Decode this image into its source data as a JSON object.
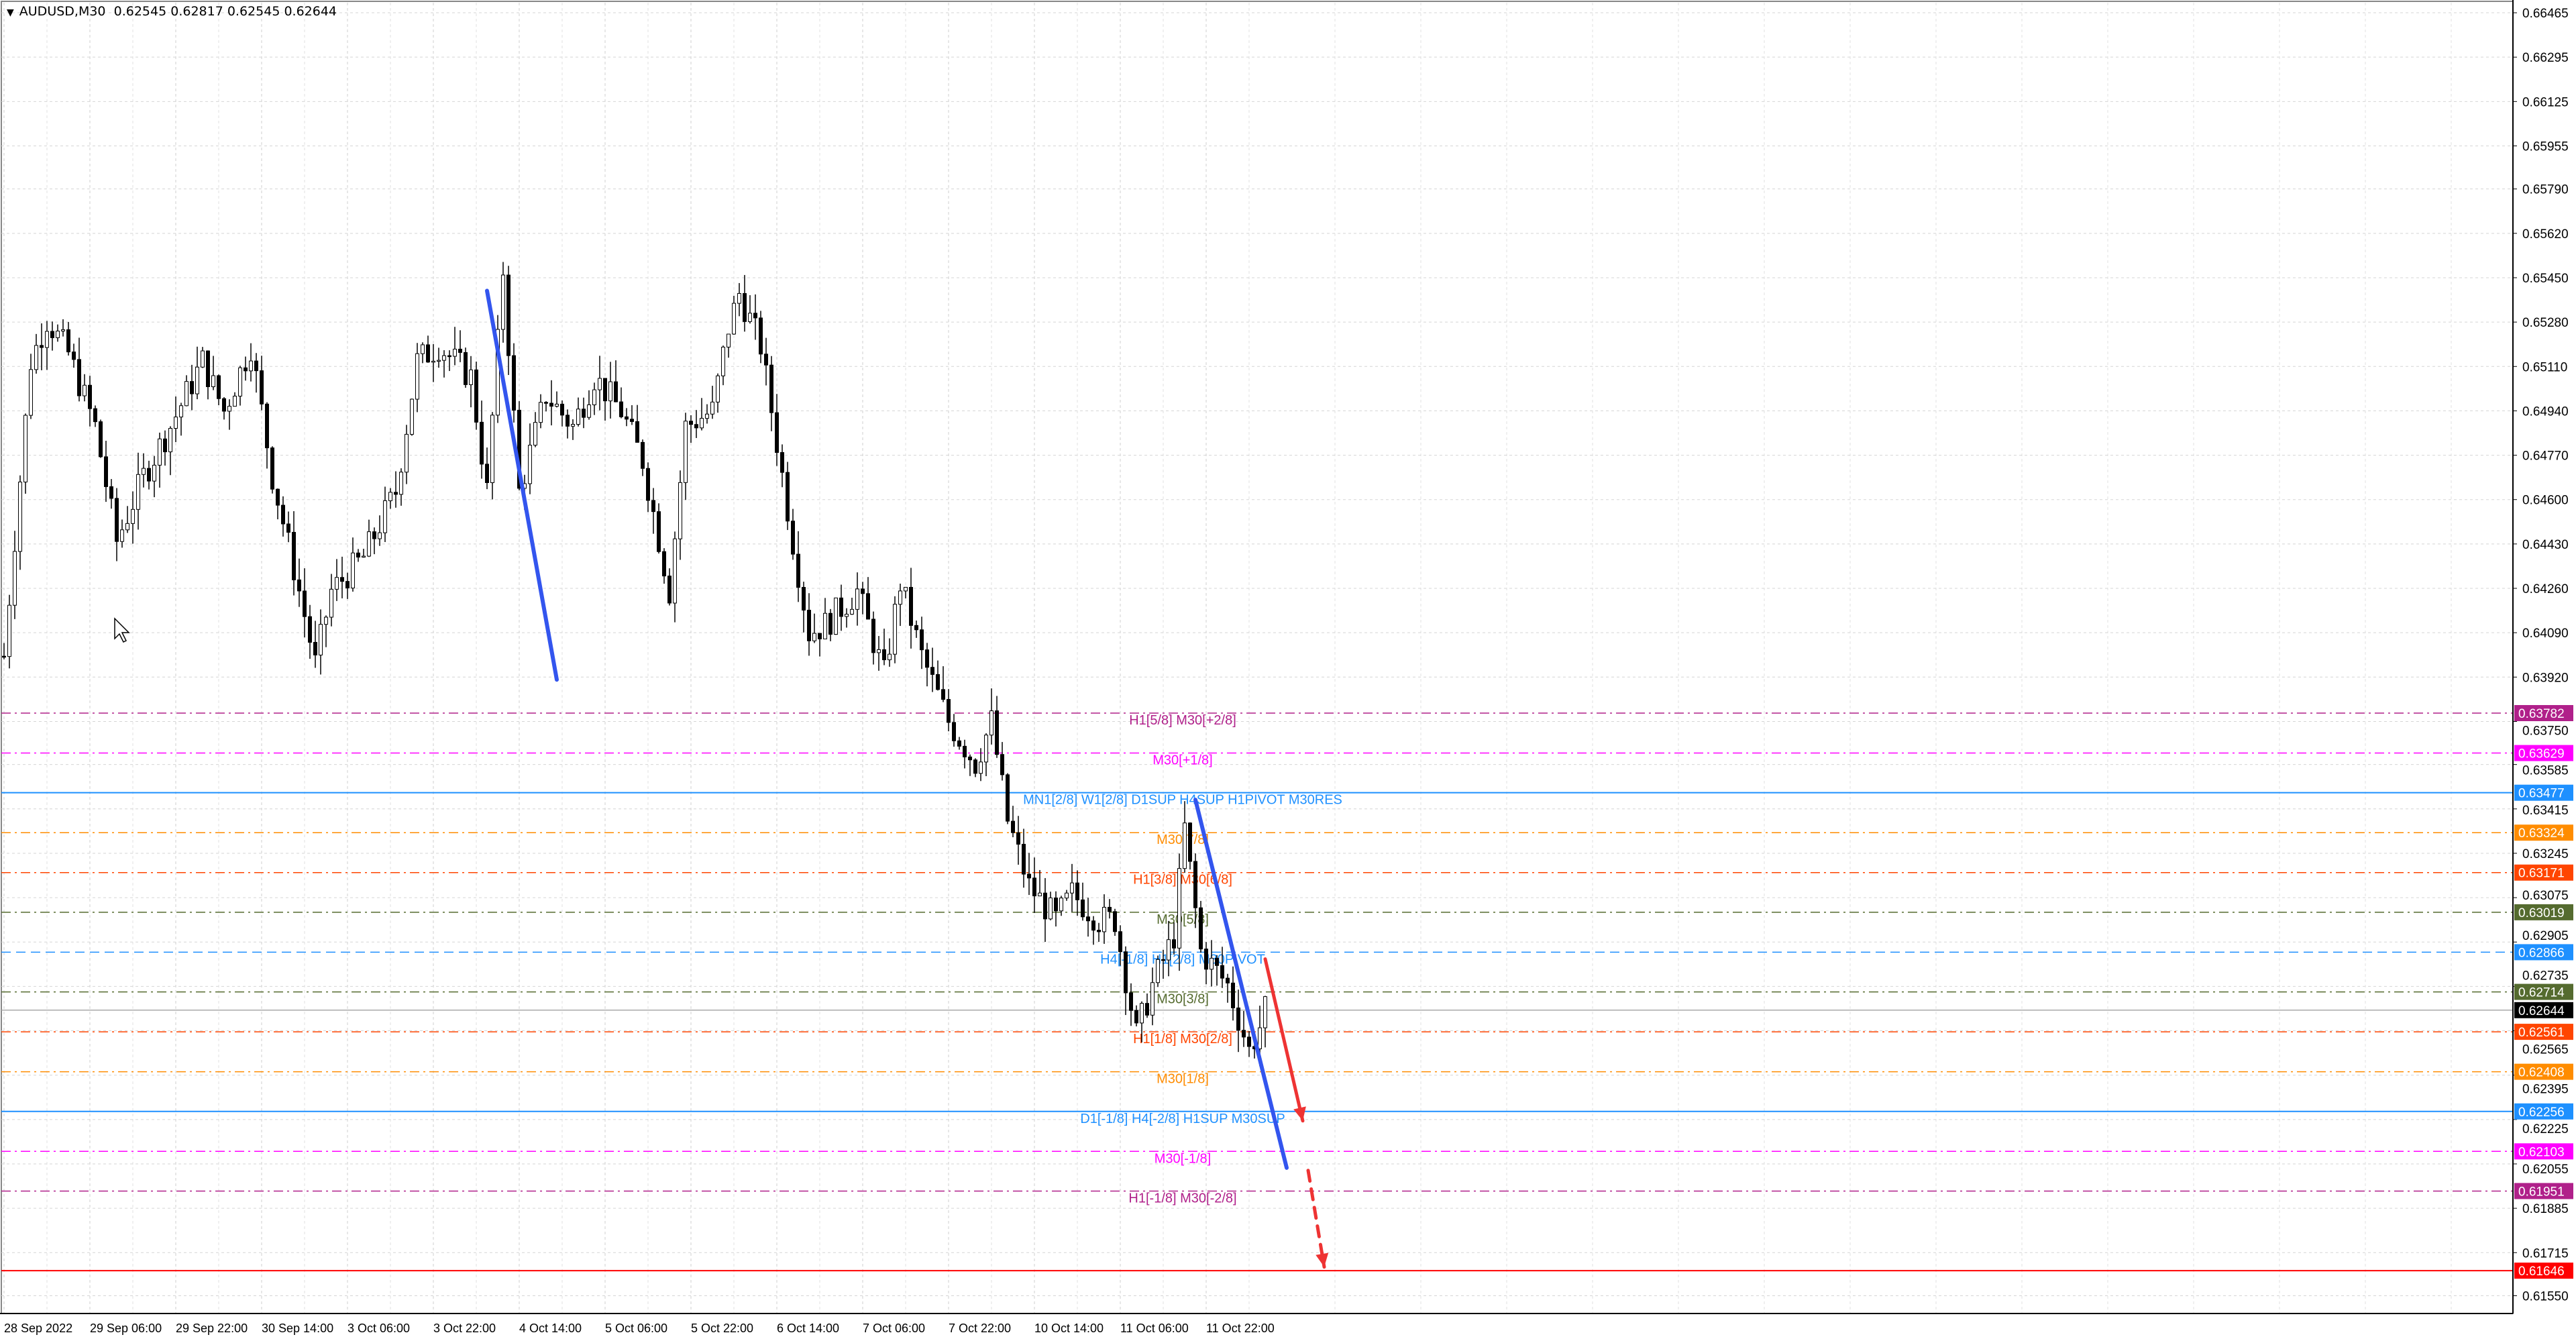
{
  "header": {
    "symbol": "AUDUSD,M30",
    "ohlc": "0.62545 0.62817 0.62545 0.62644",
    "menu_icon": "triangle-down-icon"
  },
  "chart_data": {
    "type": "candlestick",
    "symbol": "AUDUSD",
    "timeframe": "M30",
    "ylim": [
      0.6148,
      0.665
    ],
    "grid": true,
    "current_price": 0.62644,
    "y_ticks": [
      "0.66465",
      "0.66295",
      "0.66125",
      "0.65955",
      "0.65790",
      "0.65620",
      "0.65450",
      "0.65280",
      "0.65110",
      "0.64940",
      "0.64770",
      "0.64600",
      "0.64430",
      "0.64260",
      "0.64090",
      "0.63920",
      "0.63750",
      "0.63585",
      "0.63415",
      "0.63245",
      "0.63075",
      "0.62905",
      "0.62735",
      "0.62565",
      "0.62395",
      "0.62225",
      "0.62055",
      "0.61885",
      "0.61715",
      "0.61550"
    ],
    "x_ticks": [
      "28 Sep 2022",
      "29 Sep 06:00",
      "29 Sep 22:00",
      "30 Sep 14:00",
      "3 Oct 06:00",
      "3 Oct 22:00",
      "4 Oct 14:00",
      "5 Oct 06:00",
      "5 Oct 22:00",
      "6 Oct 14:00",
      "7 Oct 06:00",
      "7 Oct 22:00",
      "10 Oct 14:00",
      "11 Oct 06:00",
      "11 Oct 22:00"
    ],
    "close_path": [
      [
        0,
        0.64
      ],
      [
        5,
        0.6513
      ],
      [
        8,
        0.6529
      ],
      [
        12,
        0.6516
      ],
      [
        17,
        0.6488
      ],
      [
        21,
        0.6444
      ],
      [
        26,
        0.6469
      ],
      [
        31,
        0.6488
      ],
      [
        37,
        0.6513
      ],
      [
        41,
        0.6494
      ],
      [
        46,
        0.6519
      ],
      [
        50,
        0.6469
      ],
      [
        55,
        0.6425
      ],
      [
        58,
        0.6397
      ],
      [
        61,
        0.6425
      ],
      [
        67,
        0.6438
      ],
      [
        73,
        0.6463
      ],
      [
        77,
        0.6513
      ],
      [
        81,
        0.6519
      ],
      [
        87,
        0.6507
      ],
      [
        90,
        0.6463
      ],
      [
        93,
        0.6548
      ],
      [
        96,
        0.6463
      ],
      [
        101,
        0.65
      ],
      [
        106,
        0.6488
      ],
      [
        110,
        0.6507
      ],
      [
        115,
        0.6494
      ],
      [
        119,
        0.6475
      ],
      [
        124,
        0.6425
      ],
      [
        127,
        0.6488
      ],
      [
        132,
        0.6494
      ],
      [
        135,
        0.6526
      ],
      [
        137,
        0.6539
      ],
      [
        141,
        0.6519
      ],
      [
        144,
        0.6482
      ],
      [
        147,
        0.6444
      ],
      [
        150,
        0.6409
      ],
      [
        153,
        0.6412
      ],
      [
        159,
        0.6425
      ],
      [
        164,
        0.6393
      ],
      [
        167,
        0.6428
      ],
      [
        171,
        0.64
      ],
      [
        176,
        0.6375
      ],
      [
        181,
        0.6359
      ],
      [
        184,
        0.6375
      ],
      [
        187,
        0.6337
      ],
      [
        191,
        0.6312
      ],
      [
        196,
        0.6299
      ],
      [
        199,
        0.6309
      ],
      [
        204,
        0.6299
      ],
      [
        207,
        0.6299
      ],
      [
        211,
        0.6255
      ],
      [
        214,
        0.6274
      ],
      [
        218,
        0.6293
      ],
      [
        220,
        0.6334
      ],
      [
        223,
        0.6287
      ],
      [
        228,
        0.6274
      ],
      [
        232,
        0.6249
      ],
      [
        234,
        0.6258
      ],
      [
        235,
        0.62644
      ]
    ],
    "levels": [
      {
        "price": 0.63782,
        "label": "H1[5/8] M30[+2/8]",
        "color": "#b0208a",
        "style": "dashdot"
      },
      {
        "price": 0.63629,
        "label": "M30[+1/8]",
        "color": "#ff00ff",
        "style": "dashdot"
      },
      {
        "price": 0.63477,
        "label": "MN1[2/8] W1[2/8] D1SUP H4SUP H1PIVOT M30RES",
        "color": "#1e90ff",
        "style": "solid"
      },
      {
        "price": 0.63324,
        "label": "M30[7/8]",
        "color": "#ff8c00",
        "style": "dashdot"
      },
      {
        "price": 0.63171,
        "label": "H1[3/8] M30[6/8]",
        "color": "#ff4500",
        "style": "dashdot"
      },
      {
        "price": 0.63019,
        "label": "M30[5/8]",
        "color": "#556b2f",
        "style": "dashdot"
      },
      {
        "price": 0.62866,
        "label": "H4[-1/8] H1[2/8] M30PIVOT",
        "color": "#1e90ff",
        "style": "dash"
      },
      {
        "price": 0.62714,
        "label": "M30[3/8]",
        "color": "#556b2f",
        "style": "dashdot"
      },
      {
        "price": 0.62561,
        "label": "H1[1/8] M30[2/8]",
        "color": "#ff4500",
        "style": "dashdot"
      },
      {
        "price": 0.62408,
        "label": "M30[1/8]",
        "color": "#ff8c00",
        "style": "dashdot"
      },
      {
        "price": 0.62256,
        "label": "D1[-1/8] H4[-2/8] H1SUP M30SUP",
        "color": "#1e90ff",
        "style": "solid"
      },
      {
        "price": 0.62103,
        "label": "M30[-1/8]",
        "color": "#ff00ff",
        "style": "dashdot"
      },
      {
        "price": 0.61951,
        "label": "H1[-1/8] M30[-2/8]",
        "color": "#b0208a",
        "style": "dashdot"
      },
      {
        "price": 0.61646,
        "label": "",
        "color": "#ff0000",
        "style": "solid"
      }
    ],
    "price_tags": [
      {
        "text": "0.63782",
        "price": 0.63782,
        "color": "#b0208a"
      },
      {
        "text": "0.63629",
        "price": 0.63629,
        "color": "#ff00ff"
      },
      {
        "text": "0.63477",
        "price": 0.63477,
        "color": "#1e90ff"
      },
      {
        "text": "0.63324",
        "price": 0.63324,
        "color": "#ff8c00"
      },
      {
        "text": "0.63171",
        "price": 0.63171,
        "color": "#ff4500"
      },
      {
        "text": "0.63019",
        "price": 0.63019,
        "color": "#556b2f"
      },
      {
        "text": "0.62866",
        "price": 0.62866,
        "color": "#1e90ff"
      },
      {
        "text": "0.62714",
        "price": 0.62714,
        "color": "#556b2f"
      },
      {
        "text": "0.62644",
        "price": 0.62644,
        "color": "#000000"
      },
      {
        "text": "0.62561",
        "price": 0.62561,
        "color": "#ff4500"
      },
      {
        "text": "0.62408",
        "price": 0.62408,
        "color": "#ff8c00"
      },
      {
        "text": "0.62256",
        "price": 0.62256,
        "color": "#1e90ff"
      },
      {
        "text": "0.62103",
        "price": 0.62103,
        "color": "#ff00ff"
      },
      {
        "text": "0.61951",
        "price": 0.61951,
        "color": "#b0208a"
      },
      {
        "text": "0.61646",
        "price": 0.61646,
        "color": "#ff0000"
      }
    ],
    "trendlines": [
      {
        "color": "#3355ee",
        "from": [
          90,
          0.654
        ],
        "to": [
          103,
          0.6391
        ],
        "style": "solid"
      },
      {
        "color": "#3355ee",
        "from": [
          222,
          0.6345
        ],
        "to": [
          239,
          0.6204
        ],
        "style": "solid"
      },
      {
        "color": "#ee3333",
        "from": [
          235,
          0.6284
        ],
        "to": [
          242,
          0.6222
        ],
        "style": "arrow"
      },
      {
        "color": "#ee3333",
        "from": [
          243,
          0.6203
        ],
        "to": [
          246,
          0.6166
        ],
        "style": "dashed-arrow"
      }
    ]
  }
}
